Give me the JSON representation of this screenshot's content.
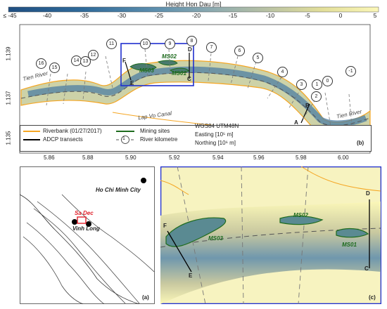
{
  "colorbar": {
    "title": "Height Hon Dau [m]",
    "ticks": [
      "≤ -45",
      "-40",
      "-35",
      "-30",
      "-25",
      "-20",
      "-15",
      "-10",
      "-5",
      "0",
      "5"
    ]
  },
  "panel_b": {
    "label": "(b)",
    "x_ticks": [
      "5.86",
      "5.88",
      "5.90",
      "5.92",
      "5.94",
      "5.96",
      "5.98",
      "6.00"
    ],
    "y_ticks": [
      "1.139",
      "1.137",
      "1.135"
    ],
    "river_labels": {
      "left": "Tien River",
      "right": "Tien River",
      "canal": "Lap Vo Canal"
    },
    "transect_letters": [
      "A",
      "B",
      "C",
      "D",
      "E",
      "F"
    ],
    "mining_sites": [
      "MS01",
      "MS02",
      "MS03"
    ],
    "km_markers": [
      "16",
      "15",
      "14",
      "13",
      "12",
      "11",
      "10",
      "9",
      "8",
      "7",
      "6",
      "5",
      "4",
      "3",
      "2",
      "1",
      "0",
      "-1"
    ],
    "legend": {
      "riverbank": "Riverbank (01/27/2017)",
      "adcp": "ADCP transects",
      "mining": "Mining sites",
      "km_symbol": "1",
      "km": "River kilometre",
      "crs": "WGS84 UTM48N",
      "easting": "Easting [10⁵ m]",
      "northing": "Northing [10⁶ m]"
    }
  },
  "panel_a": {
    "label": "(a)",
    "cities": [
      "Ho Chi Minh City",
      "Sa Dec",
      "Vinh Long"
    ]
  },
  "panel_c": {
    "label": "(c)",
    "transect_letters": [
      "D",
      "F",
      "E",
      "C"
    ],
    "mining_sites": [
      "MS03",
      "MS02",
      "MS01"
    ]
  },
  "colors": {
    "riverbank": "#f5a623",
    "adcp": "#000000",
    "mining": "#1e6b1e",
    "zoom_box": "#1f2fcf",
    "sa_dec_box": "#e0202a"
  }
}
